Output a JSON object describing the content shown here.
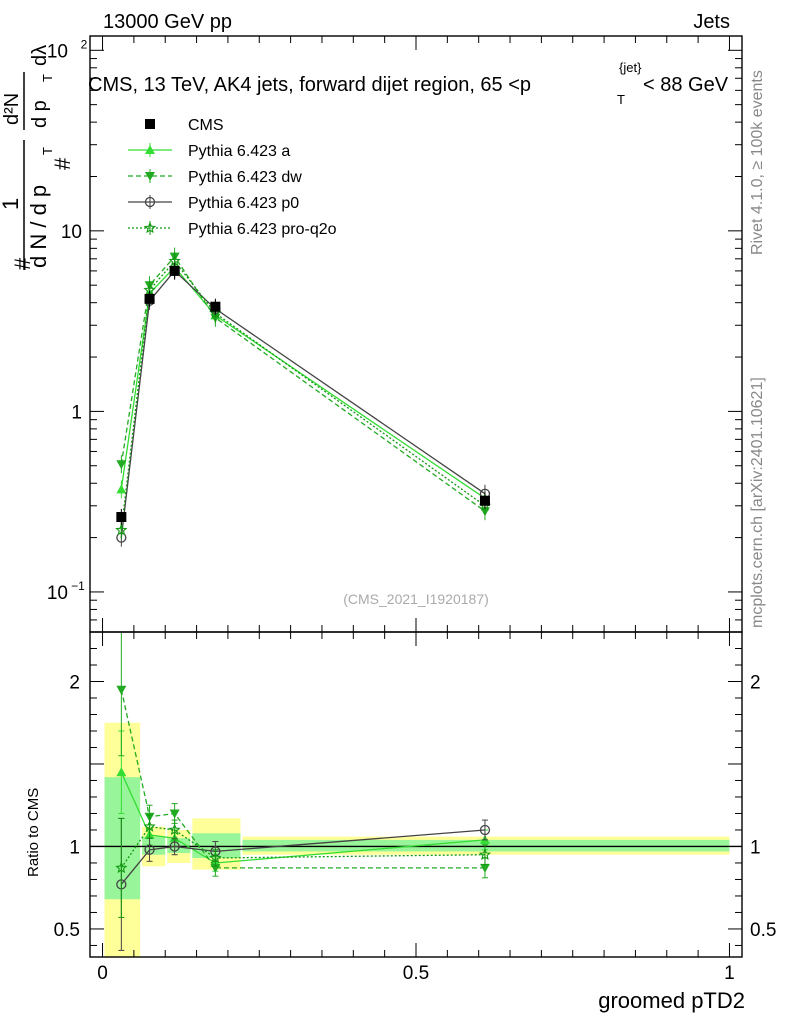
{
  "header": {
    "left": "13000 GeV pp",
    "right": "Jets"
  },
  "main_title": "CMS, 13 TeV, AK4 jets, forward dijet region, 65 <p",
  "main_title_sub": "T",
  "main_title_sup": "{jet}",
  "main_title_end": "< 88 GeV",
  "ylabel": {
    "one": "1",
    "dn": "d N / d p",
    "t_sub": "T",
    "hash_prefix": "#",
    "d2n": "d²N",
    "dpt_dl": "d p",
    "dl": "dλ"
  },
  "right_labels": {
    "rivet": "Rivet 4.1.0, ≥ 100k events",
    "mcplots": "mcplots.cern.ch [arXiv:2401.10621]"
  },
  "watermark": "(CMS_2021_I1920187)",
  "ratio_ylabel": "Ratio to CMS",
  "xlabel": "groomed pTD2",
  "main_ticks": [
    {
      "label": "10",
      "sup": "2",
      "value": 100
    },
    {
      "label": "10",
      "sup": "",
      "value": 10
    },
    {
      "label": "1",
      "sup": "",
      "value": 1
    },
    {
      "label": "10",
      "sup": "−1",
      "value": 0.1
    }
  ],
  "ratio_ticks": [
    {
      "label": "2",
      "value": 2
    },
    {
      "label": "1",
      "value": 1
    },
    {
      "label": "0.5",
      "value": 0.5
    }
  ],
  "x_ticks": [
    {
      "label": "0",
      "value": 0
    },
    {
      "label": "0.5",
      "value": 0.5
    },
    {
      "label": "1",
      "value": 1
    }
  ],
  "legend": [
    {
      "label": "CMS",
      "color": "#000000",
      "marker": "square",
      "dash": ""
    },
    {
      "label": "Pythia 6.423 a",
      "color": "#33dd33",
      "marker": "triangle-up",
      "dash": ""
    },
    {
      "label": "Pythia 6.423 dw",
      "color": "#22aa22",
      "marker": "triangle-down",
      "dash": "5,3"
    },
    {
      "label": "Pythia 6.423 p0",
      "color": "#444444",
      "marker": "circle-open",
      "dash": ""
    },
    {
      "label": "Pythia 6.423 pro-q2o",
      "color": "#119911",
      "marker": "star",
      "dash": "2,2"
    }
  ],
  "chart_data": {
    "type": "line",
    "title": "CMS, 13 TeV, AK4 jets, forward dijet region, 65 < pT{jet} < 88 GeV",
    "xlabel": "groomed pTD2",
    "ylabel": "1/(dN/dpT) d²N/(dpT dλ)",
    "xlim": [
      -0.02,
      1.02
    ],
    "ylim": [
      0.06,
      120
    ],
    "ylog": true,
    "ratio_ylim": [
      0.33,
      2.3
    ],
    "bins": [
      {
        "lo": 0.0,
        "hi": 0.06
      },
      {
        "lo": 0.06,
        "hi": 0.1
      },
      {
        "lo": 0.1,
        "hi": 0.14
      },
      {
        "lo": 0.14,
        "hi": 0.22
      },
      {
        "lo": 0.22,
        "hi": 1.0
      }
    ],
    "x": [
      0.03,
      0.075,
      0.115,
      0.18,
      0.61
    ],
    "data": {
      "name": "CMS",
      "values": [
        0.26,
        4.2,
        6.0,
        3.8,
        0.32
      ],
      "errors": [
        0.02,
        0.15,
        0.2,
        0.12,
        0.02
      ],
      "ratio_band_stat": [
        [
          0.68,
          1.42
        ],
        [
          0.95,
          1.06
        ],
        [
          0.96,
          1.05
        ],
        [
          0.93,
          1.08
        ],
        [
          0.97,
          1.04
        ]
      ],
      "ratio_band_total": [
        [
          0.0,
          1.75
        ],
        [
          0.88,
          1.12
        ],
        [
          0.9,
          1.1
        ],
        [
          0.86,
          1.17
        ],
        [
          0.95,
          1.06
        ]
      ]
    },
    "series": [
      {
        "name": "Pythia 6.423 a",
        "values": [
          0.37,
          4.5,
          6.3,
          3.4,
          0.33
        ],
        "ratio": [
          1.45,
          1.07,
          1.05,
          0.9,
          1.04
        ],
        "ratio_err": [
          0.25,
          0.06,
          0.05,
          0.05,
          0.06
        ]
      },
      {
        "name": "Pythia 6.423 dw",
        "values": [
          0.51,
          5.0,
          7.2,
          3.3,
          0.28
        ],
        "ratio": [
          1.95,
          1.18,
          1.2,
          0.87,
          0.87
        ],
        "ratio_err": [
          0.4,
          0.07,
          0.06,
          0.05,
          0.06
        ]
      },
      {
        "name": "Pythia 6.423 p0",
        "values": [
          0.2,
          4.1,
          6.0,
          3.7,
          0.35
        ],
        "ratio": [
          0.77,
          0.98,
          1.0,
          0.97,
          1.1
        ],
        "ratio_err": [
          0.4,
          0.07,
          0.05,
          0.06,
          0.06
        ]
      },
      {
        "name": "Pythia 6.423 pro-q2o",
        "values": [
          0.22,
          4.7,
          6.8,
          3.5,
          0.3
        ],
        "ratio": [
          0.87,
          1.12,
          1.1,
          0.93,
          0.95
        ],
        "ratio_err": [
          0.3,
          0.07,
          0.06,
          0.05,
          0.06
        ]
      }
    ]
  }
}
